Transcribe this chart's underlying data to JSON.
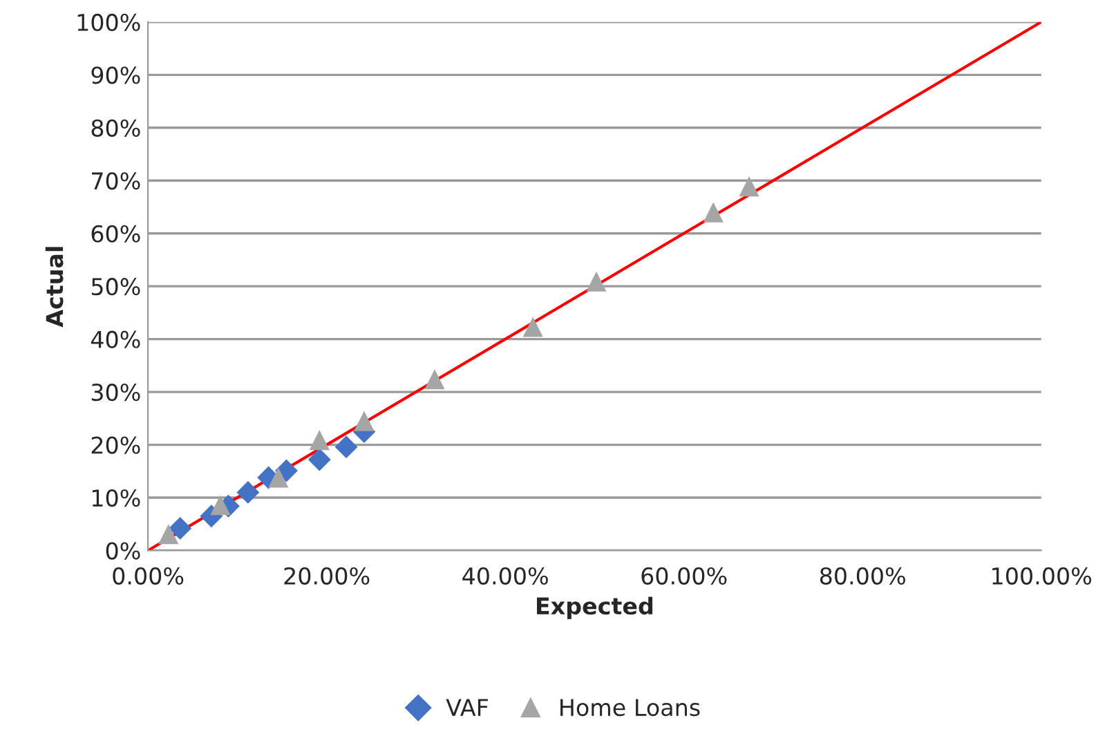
{
  "chart_data": {
    "type": "scatter",
    "xlabel": "Expected",
    "ylabel": "Actual",
    "xlim": [
      0,
      1
    ],
    "ylim": [
      0,
      1
    ],
    "xticks": [
      {
        "value": 0,
        "label": "0.00%"
      },
      {
        "value": 0.2,
        "label": "20.00%"
      },
      {
        "value": 0.4,
        "label": "40.00%"
      },
      {
        "value": 0.6,
        "label": "60.00%"
      },
      {
        "value": 0.8,
        "label": "80.00%"
      },
      {
        "value": 1,
        "label": "100.00%"
      }
    ],
    "yticks": [
      {
        "value": 0,
        "label": "0%"
      },
      {
        "value": 0.1,
        "label": "10%"
      },
      {
        "value": 0.2,
        "label": "20%"
      },
      {
        "value": 0.3,
        "label": "30%"
      },
      {
        "value": 0.4,
        "label": "40%"
      },
      {
        "value": 0.5,
        "label": "50%"
      },
      {
        "value": 0.6,
        "label": "60%"
      },
      {
        "value": 0.7,
        "label": "70%"
      },
      {
        "value": 0.8,
        "label": "80%"
      },
      {
        "value": 0.9,
        "label": "90%"
      },
      {
        "value": 1,
        "label": "100%"
      }
    ],
    "grid": "y",
    "legend": "bottom",
    "series": [
      {
        "type": "line",
        "color": "#ff0000",
        "marker": "none",
        "x": [
          0,
          1
        ],
        "values": [
          0,
          1
        ]
      },
      {
        "name": "VAF",
        "color": "#4472c4",
        "marker": "diamond",
        "x": [
          0.036,
          0.071,
          0.09,
          0.112,
          0.135,
          0.155,
          0.192,
          0.222,
          0.242
        ],
        "values": [
          0.042,
          0.065,
          0.084,
          0.11,
          0.138,
          0.151,
          0.172,
          0.196,
          0.225
        ]
      },
      {
        "name": "Home Loans",
        "color": "#a5a5a5",
        "marker": "triangle",
        "x": [
          0.023,
          0.081,
          0.146,
          0.192,
          0.242,
          0.321,
          0.431,
          0.502,
          0.633,
          0.673
        ],
        "values": [
          0.031,
          0.086,
          0.138,
          0.209,
          0.245,
          0.324,
          0.423,
          0.509,
          0.64,
          0.689
        ]
      }
    ]
  }
}
